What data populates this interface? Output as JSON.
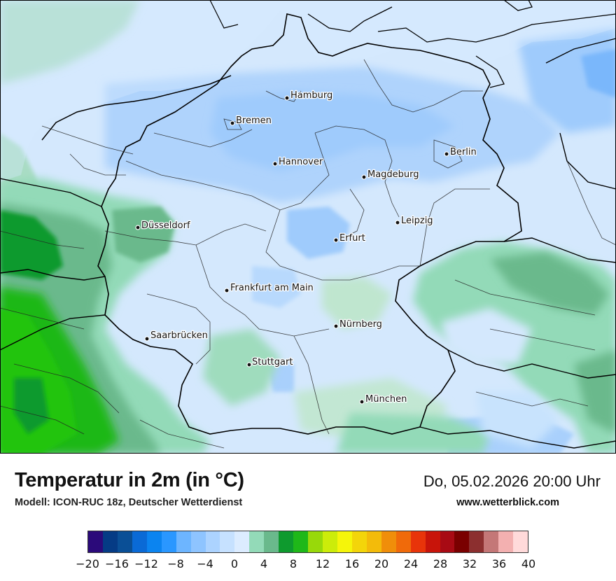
{
  "title": "Temperatur in 2m (in °C)",
  "subtitle": "Modell: ICON-RUC 18z, Deutscher Wetterdienst",
  "datetime": "Do, 05.02.2026 20:00 Uhr",
  "website": "www.wetterblick.com",
  "cities": [
    {
      "name": "Hamburg"
    },
    {
      "name": "Bremen"
    },
    {
      "name": "Berlin"
    },
    {
      "name": "Hannover"
    },
    {
      "name": "Magdeburg"
    },
    {
      "name": "Düsseldorf"
    },
    {
      "name": "Leipzig"
    },
    {
      "name": "Erfurt"
    },
    {
      "name": "Frankfurt am Main"
    },
    {
      "name": "Nürnberg"
    },
    {
      "name": "Saarbrücken"
    },
    {
      "name": "Stuttgart"
    },
    {
      "name": "München"
    }
  ],
  "legend": {
    "colors": [
      "#2b0a7a",
      "#053b85",
      "#0a4f96",
      "#0a6ad6",
      "#0b84f0",
      "#2a97ff",
      "#6db5ff",
      "#8ec4ff",
      "#acd3ff",
      "#c6e1ff",
      "#dcecff",
      "#93dab8",
      "#6ab98c",
      "#0e9a2e",
      "#1fb819",
      "#98d90a",
      "#ccec0a",
      "#f5f50a",
      "#f3d50a",
      "#f3bb0a",
      "#f08e0a",
      "#f06a0a",
      "#e8340a",
      "#c8140a",
      "#a80a14",
      "#7a0000",
      "#8c2f2f",
      "#c47777",
      "#f3b0b0",
      "#ffdada"
    ],
    "ticks": [
      "−20",
      "−16",
      "−12",
      "−8",
      "−4",
      "0",
      "4",
      "8",
      "12",
      "16",
      "20",
      "24",
      "28",
      "32",
      "36",
      "40"
    ]
  }
}
